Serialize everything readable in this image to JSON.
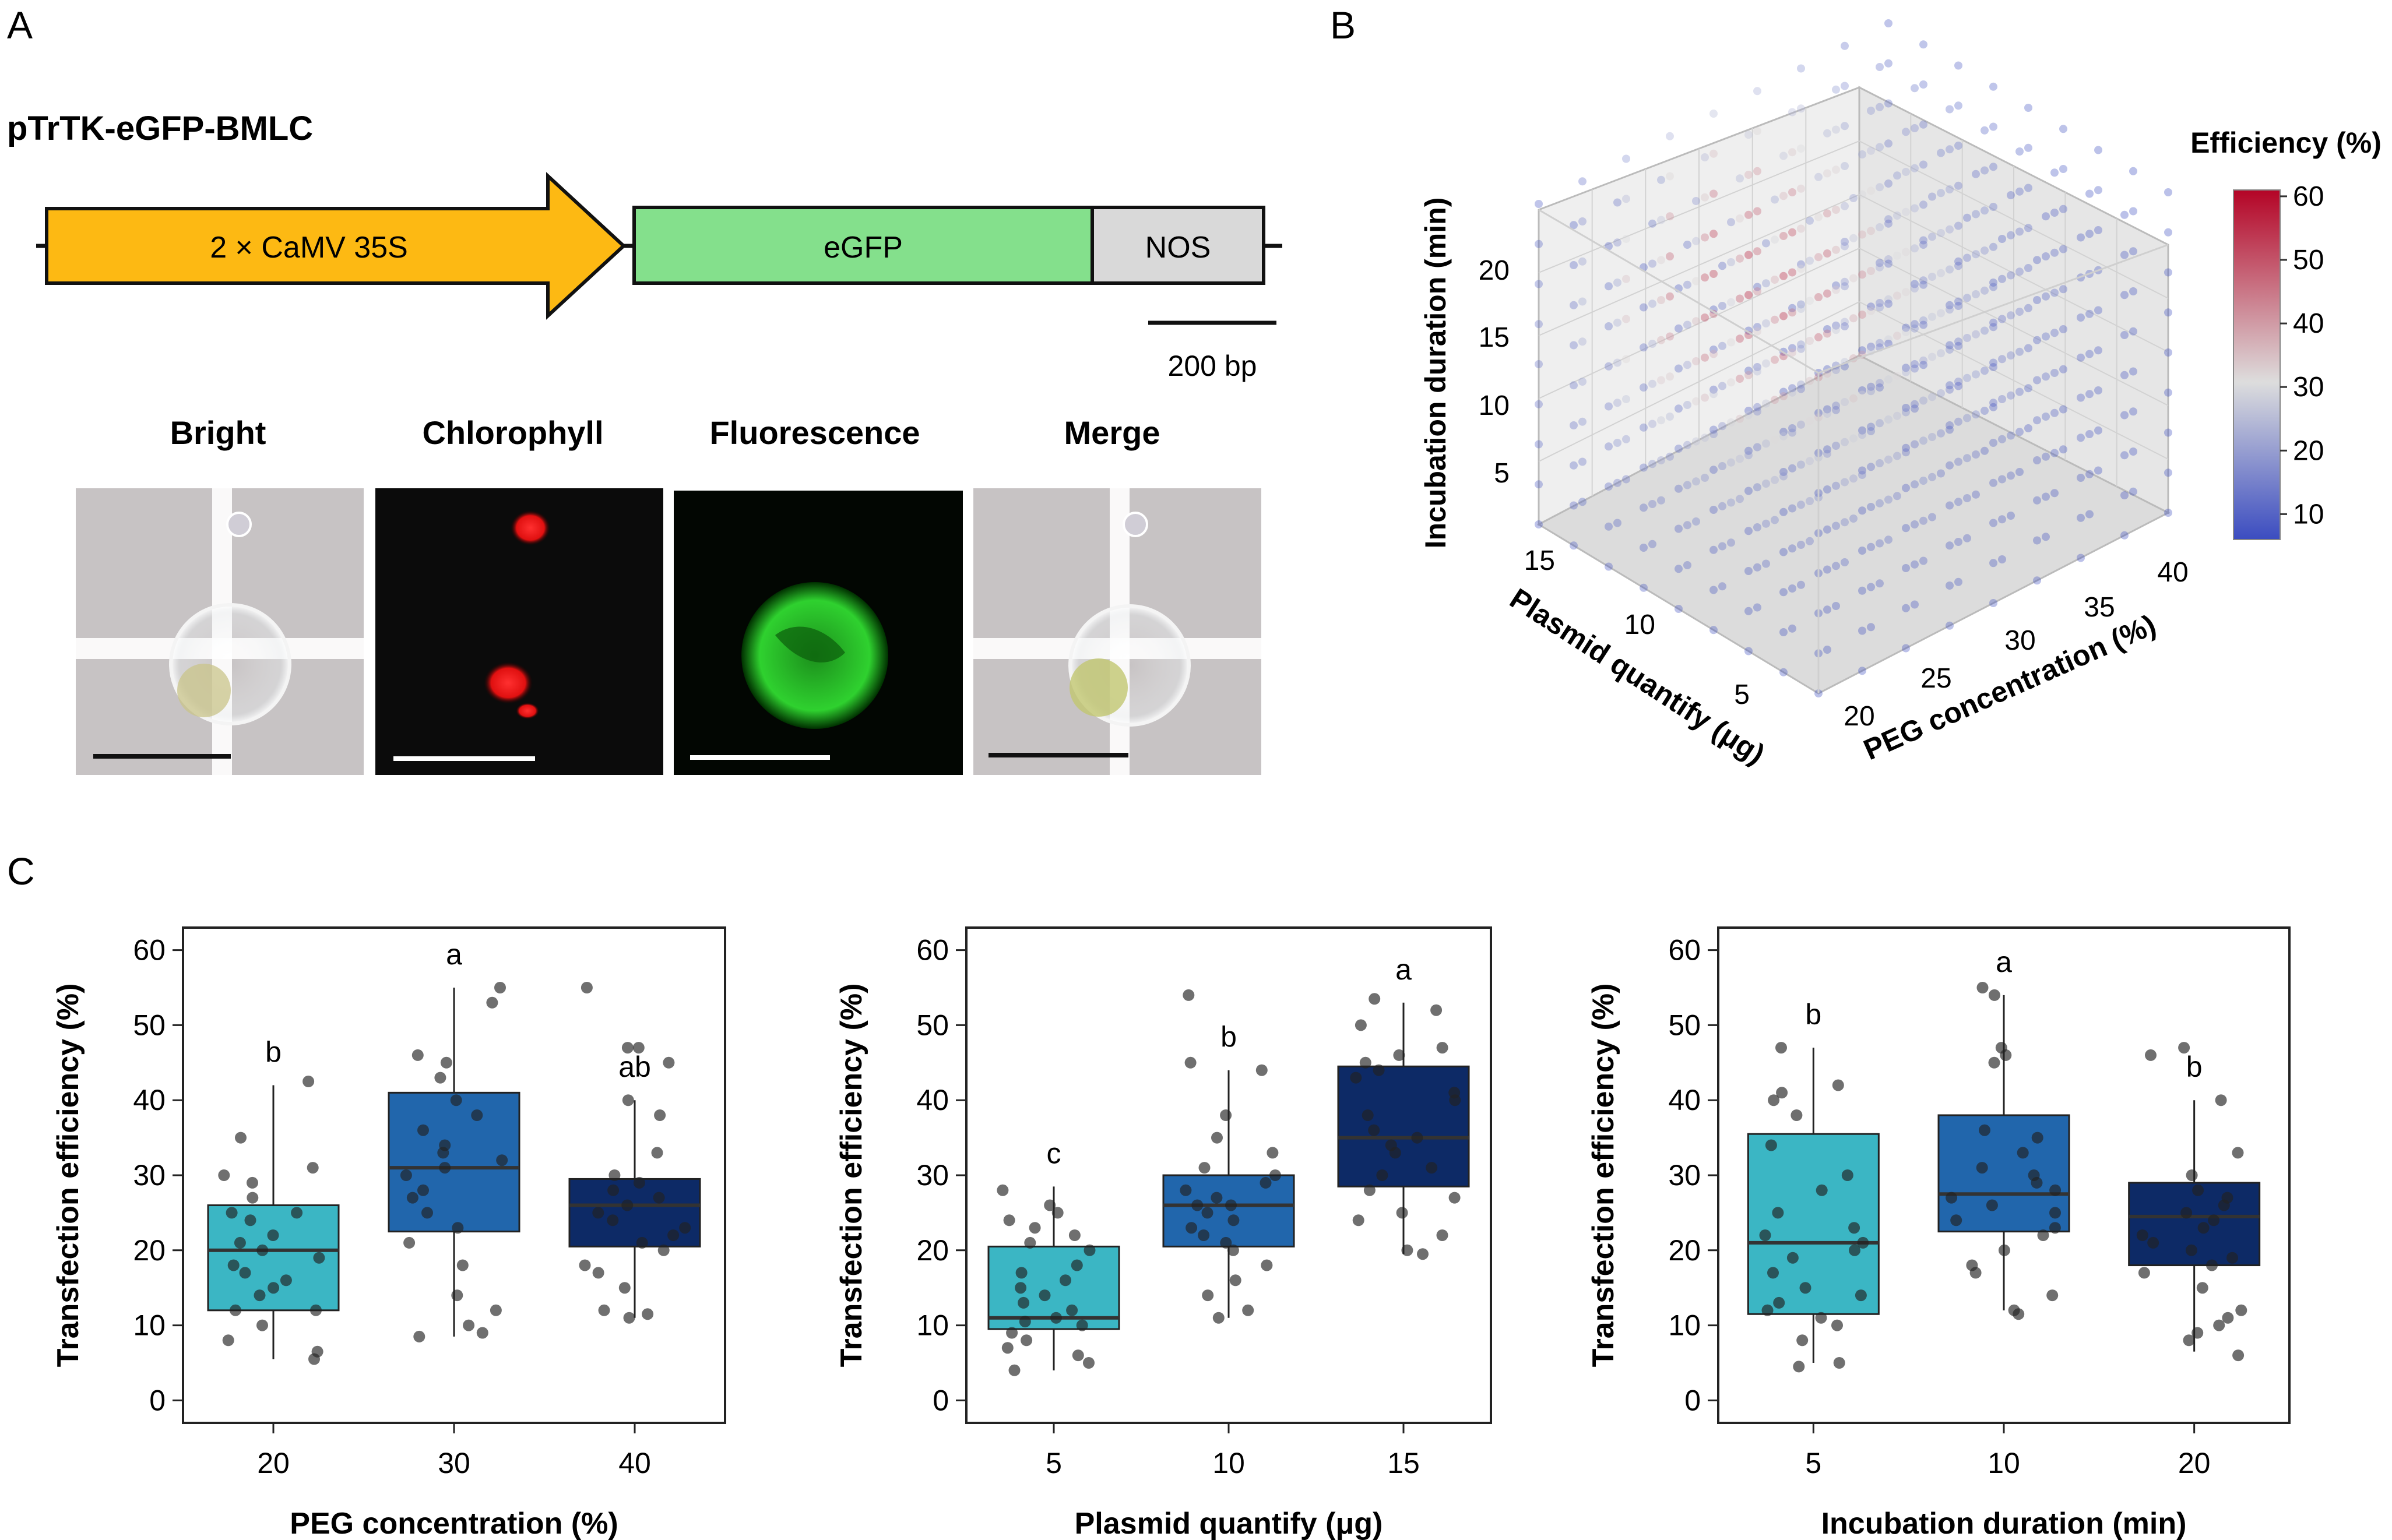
{
  "panel_labels": {
    "a": "A",
    "b": "B",
    "c": "C"
  },
  "construct": {
    "title": "pTrTK-eGFP-BMLC",
    "promoter": "2 × CaMV 35S",
    "gene": "eGFP",
    "terminator": "NOS",
    "scale_bar": "200 bp",
    "colors": {
      "promoter": "#fdb913",
      "gene": "#84e08c",
      "terminator": "#d9d9d9"
    }
  },
  "microscopy": {
    "labels": [
      "Bright",
      "Chlorophyll",
      "Fluorescence",
      "Merge"
    ]
  },
  "chart_data": [
    {
      "type": "scatter",
      "variant": "3d-volume",
      "title": "",
      "axes": {
        "x": {
          "label": "PEG concentration (%)",
          "ticks": [
            20,
            25,
            30,
            35,
            40
          ]
        },
        "y": {
          "label": "Plasmid quantify (μg)",
          "ticks": [
            5,
            10,
            15
          ]
        },
        "z": {
          "label": "Incubation duration (min)",
          "ticks": [
            5,
            10,
            15,
            20
          ]
        }
      },
      "colorbar": {
        "title": "Efficiency (%)",
        "ticks": [
          10,
          20,
          30,
          40,
          50,
          60
        ],
        "range": [
          6,
          61
        ],
        "colors": [
          "#3b4cc0",
          "#dddddd",
          "#b40426"
        ]
      }
    },
    {
      "type": "box",
      "xlabel": "PEG concentration (%)",
      "ylabel": "Transfection efficiency (%)",
      "ylim": [
        -3,
        63
      ],
      "yticks": [
        0,
        10,
        20,
        30,
        40,
        50,
        60
      ],
      "categories": [
        "20",
        "30",
        "40"
      ],
      "colors": [
        "#3bb6c4",
        "#2166ac",
        "#0d2a66"
      ],
      "boxes": [
        {
          "category": "20",
          "min": 5.5,
          "q1": 12,
          "median": 20,
          "q3": 26,
          "max": 42,
          "letter": "b"
        },
        {
          "category": "30",
          "min": 8.5,
          "q1": 22.5,
          "median": 31,
          "q3": 41,
          "max": 55,
          "letter": "a"
        },
        {
          "category": "40",
          "min": 11,
          "q1": 20.5,
          "median": 26,
          "q3": 29.5,
          "max": 40,
          "letter": "ab"
        }
      ],
      "points": [
        [
          5.5,
          6.5,
          8,
          10,
          12,
          12,
          14,
          15,
          16,
          17,
          18,
          19,
          20,
          21,
          22,
          24,
          25,
          25,
          27,
          29,
          30,
          31,
          35,
          42.5
        ],
        [
          8.5,
          9,
          10,
          12,
          14,
          18,
          21,
          23,
          25,
          27,
          28,
          30,
          31,
          32,
          33,
          34,
          36,
          38,
          40,
          43,
          45,
          46,
          53,
          55
        ],
        [
          11,
          11.5,
          12,
          15,
          17,
          18,
          20,
          21,
          22,
          23,
          24,
          25,
          26,
          27,
          28,
          29,
          30,
          33,
          38,
          40,
          45,
          47,
          47,
          55
        ]
      ]
    },
    {
      "type": "box",
      "xlabel": "Plasmid quantify (μg)",
      "ylabel": "Transfection efficiency (%)",
      "ylim": [
        -3,
        63
      ],
      "yticks": [
        0,
        10,
        20,
        30,
        40,
        50,
        60
      ],
      "categories": [
        "5",
        "10",
        "15"
      ],
      "colors": [
        "#3bb6c4",
        "#2166ac",
        "#0d2a66"
      ],
      "boxes": [
        {
          "category": "5",
          "min": 4,
          "q1": 9.5,
          "median": 11,
          "q3": 20.5,
          "max": 28.5,
          "letter": "c"
        },
        {
          "category": "10",
          "min": 11,
          "q1": 20.5,
          "median": 26,
          "q3": 30,
          "max": 44,
          "letter": "b"
        },
        {
          "category": "15",
          "min": 19.5,
          "q1": 28.5,
          "median": 35,
          "q3": 44.5,
          "max": 53,
          "letter": "a"
        }
      ],
      "points": [
        [
          4,
          5,
          6,
          7,
          8,
          9,
          10,
          10.5,
          11,
          12,
          13,
          14,
          15,
          16,
          17,
          18,
          20,
          21,
          22,
          23,
          24,
          25,
          26,
          28
        ],
        [
          11,
          12,
          14,
          16,
          18,
          20,
          21,
          22,
          23,
          24,
          25,
          26,
          26,
          27,
          28,
          29,
          30,
          31,
          33,
          35,
          38,
          44,
          45,
          54
        ],
        [
          19.5,
          20,
          22,
          24,
          25,
          27,
          28,
          30,
          31,
          33,
          34,
          35,
          36,
          38,
          40,
          41,
          43,
          44,
          45,
          46,
          47,
          50,
          52,
          53.5
        ]
      ]
    },
    {
      "type": "box",
      "xlabel": "Incubation duration (min)",
      "ylabel": "Transfection efficiency (%)",
      "ylim": [
        -3,
        63
      ],
      "yticks": [
        0,
        10,
        20,
        30,
        40,
        50,
        60
      ],
      "categories": [
        "5",
        "10",
        "20"
      ],
      "colors": [
        "#3bb6c4",
        "#2166ac",
        "#0d2a66"
      ],
      "boxes": [
        {
          "category": "5",
          "min": 5,
          "q1": 11.5,
          "median": 21,
          "q3": 35.5,
          "max": 47,
          "letter": "b"
        },
        {
          "category": "10",
          "min": 12,
          "q1": 22.5,
          "median": 27.5,
          "q3": 38,
          "max": 54,
          "letter": "a"
        },
        {
          "category": "20",
          "min": 6.5,
          "q1": 18,
          "median": 24.5,
          "q3": 29,
          "max": 40,
          "letter": "b"
        }
      ],
      "points": [
        [
          4.5,
          5,
          8,
          10,
          11,
          12,
          13,
          14,
          15,
          17,
          19,
          20,
          21,
          22,
          23,
          25,
          28,
          30,
          34,
          38,
          40,
          41,
          42,
          47
        ],
        [
          11.5,
          12,
          14,
          17,
          18,
          20,
          22,
          23,
          24,
          25,
          26,
          27,
          28,
          29,
          30,
          31,
          33,
          35,
          36,
          45,
          46,
          47,
          54,
          55
        ],
        [
          6,
          8,
          9,
          10,
          11,
          12,
          15,
          17,
          18,
          19,
          20,
          21,
          22,
          23,
          24,
          25,
          26,
          27,
          28,
          30,
          33,
          40,
          46,
          47
        ]
      ]
    }
  ]
}
